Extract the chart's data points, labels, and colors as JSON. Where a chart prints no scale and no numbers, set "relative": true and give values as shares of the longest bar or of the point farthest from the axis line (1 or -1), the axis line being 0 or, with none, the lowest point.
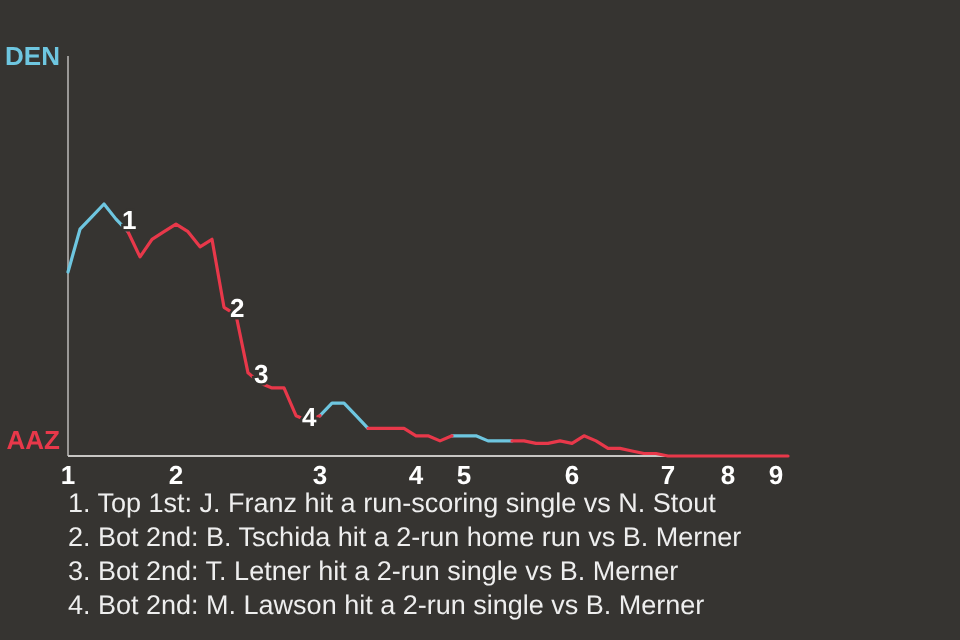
{
  "chart_data": {
    "type": "line",
    "relative": true,
    "categories": [
      "1",
      null,
      null,
      null,
      null,
      null,
      null,
      null,
      null,
      "2",
      null,
      null,
      null,
      null,
      null,
      null,
      null,
      null,
      null,
      null,
      null,
      "3",
      null,
      null,
      null,
      null,
      null,
      null,
      null,
      "4",
      null,
      null,
      null,
      "5",
      null,
      null,
      null,
      null,
      null,
      null,
      null,
      null,
      "6",
      null,
      null,
      null,
      null,
      null,
      null,
      null,
      "7",
      null,
      null,
      null,
      null,
      "8",
      null,
      null,
      null,
      "9",
      null
    ],
    "series": [
      {
        "name": "DEN",
        "color": "#6ec6e0",
        "values": [
          0.73,
          0.9,
          0.95,
          1,
          0.94,
          0.89,
          null,
          null,
          null,
          null,
          null,
          null,
          null,
          null,
          null,
          null,
          null,
          null,
          null,
          null,
          null,
          0.16,
          0.21,
          0.21,
          0.16,
          0.11,
          null,
          null,
          null,
          null,
          null,
          null,
          0.08,
          0.08,
          0.08,
          0.06,
          0.06,
          0.06,
          null,
          null,
          null,
          null,
          null,
          null,
          null,
          null,
          null,
          null,
          null,
          null,
          null,
          null,
          null,
          null,
          null,
          null,
          null,
          null,
          null,
          null,
          null
        ]
      },
      {
        "name": "AAZ",
        "color": "#e8384a",
        "values": [
          null,
          null,
          null,
          null,
          null,
          0.89,
          0.79,
          0.86,
          0.89,
          0.92,
          0.89,
          0.83,
          0.86,
          0.59,
          0.56,
          0.33,
          0.29,
          0.27,
          0.27,
          0.16,
          0.14,
          0.16,
          null,
          null,
          null,
          0.11,
          0.11,
          0.11,
          0.11,
          0.08,
          0.08,
          0.06,
          0.08,
          null,
          null,
          null,
          null,
          0.06,
          0.06,
          0.05,
          0.05,
          0.06,
          0.05,
          0.08,
          0.06,
          0.03,
          0.03,
          0.02,
          0.01,
          0.01,
          0,
          0,
          0,
          0,
          0,
          0,
          0,
          0,
          0,
          0,
          0
        ]
      }
    ],
    "line_style": "solid",
    "marker": "none",
    "annotations": [
      {
        "text": "1",
        "y": 0.94
      },
      {
        "text": "2",
        "y": 0.59
      },
      {
        "text": "3",
        "y": 0.33
      },
      {
        "text": "4",
        "y": 0.16
      },
      "1. Top 1st: J. Franz hit a run-scoring single vs N. Stout",
      "2. Bot 2nd: B. Tschida hit a 2-run home run vs B. Merner",
      "3. Bot 2nd: T. Letner hit a 2-run single vs B. Merner",
      "4. Bot 2nd: M. Lawson hit a 2-run single vs B. Merner"
    ]
  }
}
